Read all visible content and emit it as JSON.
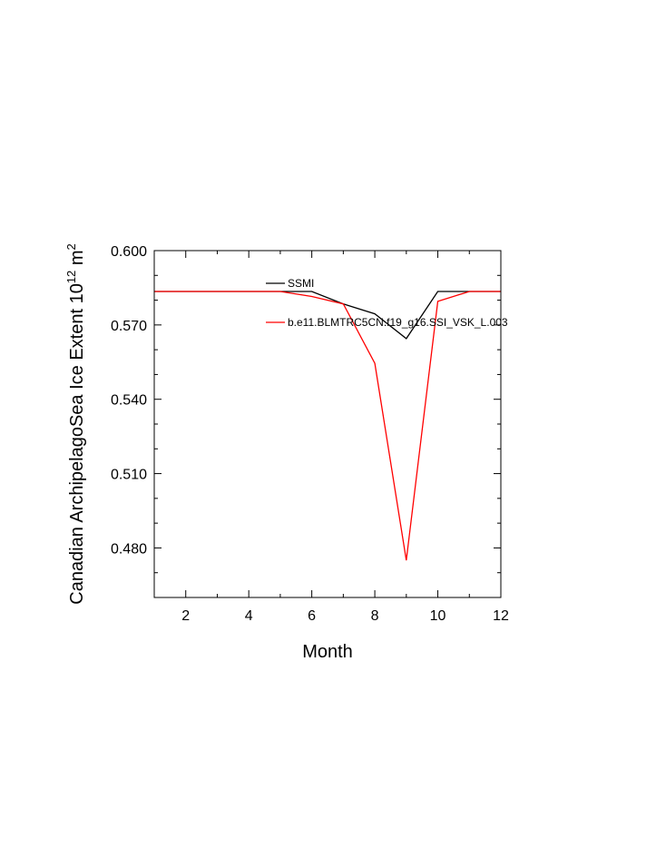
{
  "chart_data": {
    "type": "line",
    "title": "",
    "xlabel": "Month",
    "ylabel_main": "Canadian ArchipelagoSea Ice Extent 10",
    "ylabel_exp": "12",
    "ylabel_unit": " m",
    "ylabel_unit_exp": "2",
    "xlim": [
      1,
      12
    ],
    "ylim": [
      0.46,
      0.6
    ],
    "xticks": [
      2,
      4,
      6,
      8,
      10,
      12
    ],
    "xtick_labels": [
      "2",
      "4",
      "6",
      "8",
      "10",
      "12"
    ],
    "yticks": [
      0.48,
      0.51,
      0.54,
      0.57,
      0.6
    ],
    "ytick_labels": [
      "0.480",
      "0.510",
      "0.540",
      "0.570",
      "0.600"
    ],
    "legend_position": "top-right inside plot",
    "grid": false,
    "x": [
      1,
      2,
      3,
      4,
      5,
      6,
      7,
      8,
      9,
      10,
      11,
      12
    ],
    "series": [
      {
        "name": "SSMI",
        "color": "#000000",
        "values": [
          0.5835,
          0.5835,
          0.5835,
          0.5835,
          0.5835,
          0.5835,
          0.5785,
          0.5745,
          0.5645,
          0.5835,
          0.5835,
          0.5835
        ]
      },
      {
        "name": "b.e11.BLMTRC5CN.f19_g16.SSI_VSK_L.003",
        "color": "#ff0000",
        "values": [
          0.5835,
          0.5835,
          0.5835,
          0.5835,
          0.5835,
          0.5815,
          0.5785,
          0.5545,
          0.475,
          0.5795,
          0.5835,
          0.5835
        ]
      }
    ]
  }
}
